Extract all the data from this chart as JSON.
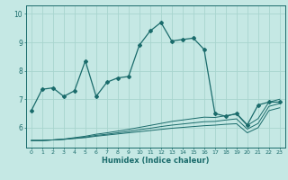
{
  "title": "",
  "xlabel": "Humidex (Indice chaleur)",
  "ylabel": "",
  "bg_color": "#c5e8e4",
  "line_color": "#1a6b6b",
  "grid_color": "#a8d4ce",
  "xlim": [
    -0.5,
    23.5
  ],
  "ylim": [
    5.3,
    10.3
  ],
  "x": [
    0,
    1,
    2,
    3,
    4,
    5,
    6,
    7,
    8,
    9,
    10,
    11,
    12,
    13,
    14,
    15,
    16,
    17,
    18,
    19,
    20,
    21,
    22,
    23
  ],
  "line1": [
    6.6,
    7.35,
    7.4,
    7.1,
    7.3,
    8.35,
    7.1,
    7.6,
    7.75,
    7.8,
    8.9,
    9.4,
    9.7,
    9.05,
    9.1,
    9.15,
    8.75,
    6.5,
    6.4,
    6.5,
    6.1,
    6.8,
    6.9,
    6.9
  ],
  "line2": [
    5.55,
    5.55,
    5.57,
    5.59,
    5.62,
    5.65,
    5.7,
    5.74,
    5.78,
    5.82,
    5.86,
    5.9,
    5.94,
    5.98,
    6.01,
    6.04,
    6.07,
    6.09,
    6.12,
    6.14,
    5.82,
    6.0,
    6.6,
    6.7
  ],
  "line3": [
    5.55,
    5.55,
    5.57,
    5.59,
    5.63,
    5.67,
    5.73,
    5.77,
    5.82,
    5.87,
    5.93,
    5.98,
    6.04,
    6.09,
    6.13,
    6.17,
    6.21,
    6.22,
    6.27,
    6.31,
    5.95,
    6.15,
    6.75,
    6.85
  ],
  "line4": [
    5.55,
    5.55,
    5.57,
    5.6,
    5.65,
    5.7,
    5.77,
    5.82,
    5.88,
    5.94,
    6.01,
    6.08,
    6.15,
    6.22,
    6.27,
    6.32,
    6.37,
    6.36,
    6.42,
    6.48,
    6.08,
    6.32,
    6.9,
    7.0
  ],
  "yticks": [
    6,
    7,
    8,
    9,
    10
  ],
  "xticks": [
    0,
    1,
    2,
    3,
    4,
    5,
    6,
    7,
    8,
    9,
    10,
    11,
    12,
    13,
    14,
    15,
    16,
    17,
    18,
    19,
    20,
    21,
    22,
    23
  ]
}
